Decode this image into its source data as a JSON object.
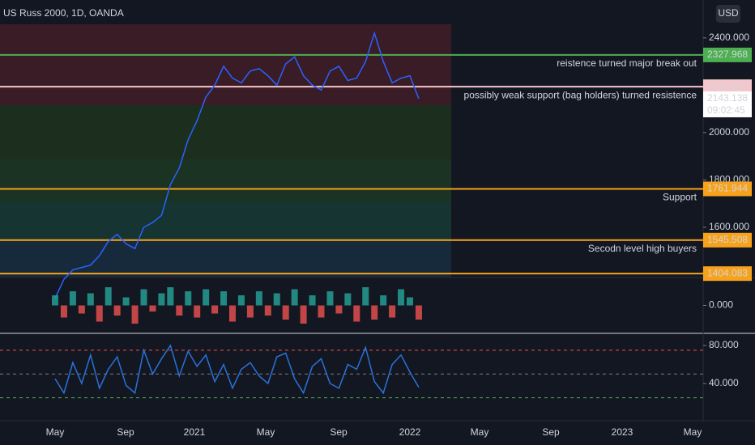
{
  "header": {
    "title": "US Russ 2000, 1D, OANDA",
    "currency": "USD"
  },
  "time_axis": [
    "May",
    "Sep",
    "2021",
    "May",
    "Sep",
    "2022",
    "May",
    "Sep",
    "2023",
    "May"
  ],
  "chart_data": [
    {
      "type": "line",
      "color": "#2962ff",
      "values": [
        1300,
        1380,
        1420,
        1430,
        1440,
        1480,
        1540,
        1570,
        1530,
        1510,
        1600,
        1620,
        1650,
        1780,
        1850,
        1970,
        2050,
        2150,
        2200,
        2280,
        2230,
        2210,
        2260,
        2270,
        2240,
        2200,
        2290,
        2320,
        2240,
        2200,
        2180,
        2260,
        2280,
        2220,
        2230,
        2300,
        2420,
        2300,
        2210,
        2230,
        2240,
        2143.138
      ],
      "ylim": [
        1391,
        2560
      ],
      "yticks": [
        {
          "value": 2400,
          "label": "2400.000"
        },
        {
          "value": 2000,
          "label": "2000.000"
        },
        {
          "value": 1800,
          "label": "1800.000"
        },
        {
          "value": 1600,
          "label": "1600.000"
        }
      ],
      "levels": [
        {
          "value": 2327.968,
          "color": "#4caf50",
          "text": "reistence turned major break out"
        },
        {
          "value": 2193.657,
          "color": "#f5c6cb",
          "text": "possibly weak support (bag holders) turned resistence"
        },
        {
          "value": 1761.944,
          "color": "#f7a21b",
          "text": "Support"
        },
        {
          "value": 1545.508,
          "color": "#f7a21b",
          "text": "Secodn level high buyers"
        },
        {
          "value": 1404.083,
          "color": "#f7a21b"
        }
      ],
      "current_price": {
        "value": 2143.138,
        "countdown": "09:02:45"
      }
    },
    {
      "type": "bar",
      "colors": [
        "#26a69a",
        "#ef5350"
      ],
      "values": [
        0.5,
        -0.6,
        0.7,
        -0.4,
        0.6,
        -0.8,
        0.9,
        -0.5,
        0.4,
        -0.9,
        0.8,
        -0.3,
        0.6,
        0.9,
        -0.5,
        0.7,
        -0.6,
        0.8,
        -0.4,
        0.7,
        -0.8,
        0.5,
        -0.6,
        0.7,
        -0.5,
        0.6,
        -0.7,
        0.8,
        -0.9,
        0.5,
        -0.6,
        0.7,
        -0.4,
        0.6,
        -0.8,
        0.9,
        -0.7,
        0.5,
        -0.6,
        0.8,
        0.4,
        -0.7
      ],
      "ylim": [
        -1.3,
        1.3
      ],
      "yticks": [
        {
          "value": 0,
          "label": "0.000"
        }
      ]
    },
    {
      "type": "line",
      "color": "#2a72d8",
      "values": [
        45,
        30,
        62,
        40,
        70,
        35,
        55,
        68,
        38,
        30,
        75,
        50,
        66,
        80,
        48,
        74,
        58,
        70,
        42,
        60,
        35,
        55,
        62,
        48,
        40,
        68,
        72,
        45,
        30,
        58,
        66,
        40,
        35,
        60,
        55,
        78,
        42,
        30,
        60,
        70,
        52,
        36
      ],
      "ylim": [
        0.85,
        90.2
      ],
      "yticks": [
        {
          "value": 80,
          "label": "80.000"
        },
        {
          "value": 40,
          "label": "40.000"
        }
      ],
      "levels": [
        {
          "value": 75,
          "color": "#ef5350"
        },
        {
          "value": 50,
          "color": "#787b86"
        },
        {
          "value": 25,
          "color": "#4caf50"
        }
      ]
    }
  ]
}
